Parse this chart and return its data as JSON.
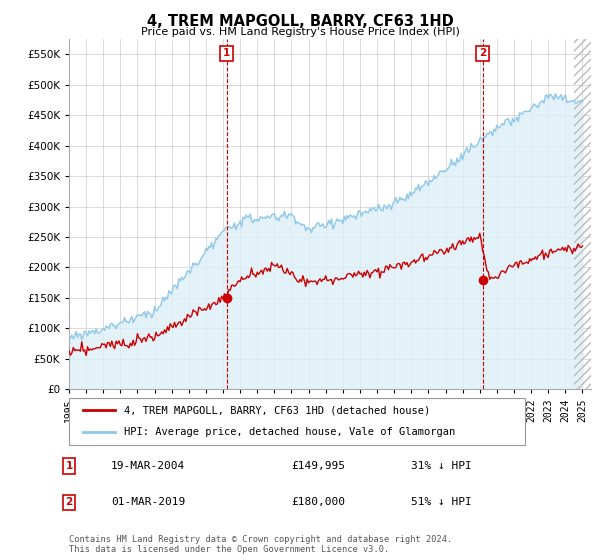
{
  "title": "4, TREM MAPGOLL, BARRY, CF63 1HD",
  "subtitle": "Price paid vs. HM Land Registry's House Price Index (HPI)",
  "ylim": [
    0,
    575000
  ],
  "yticks": [
    0,
    50000,
    100000,
    150000,
    200000,
    250000,
    300000,
    350000,
    400000,
    450000,
    500000,
    550000
  ],
  "x_start_year": 1995,
  "x_end_year": 2025,
  "hpi_color": "#8fc8e8",
  "hpi_fill_color": "#ddeef8",
  "price_color": "#cc0000",
  "marker1_year": 2004.21,
  "marker1_price": 149995,
  "marker2_year": 2019.17,
  "marker2_price": 180000,
  "legend_line1": "4, TREM MAPGOLL, BARRY, CF63 1HD (detached house)",
  "legend_line2": "HPI: Average price, detached house, Vale of Glamorgan",
  "annotation1_num": "1",
  "annotation1_date": "19-MAR-2004",
  "annotation1_price": "£149,995",
  "annotation1_pct": "31% ↓ HPI",
  "annotation2_num": "2",
  "annotation2_date": "01-MAR-2019",
  "annotation2_price": "£180,000",
  "annotation2_pct": "51% ↓ HPI",
  "footer": "Contains HM Land Registry data © Crown copyright and database right 2024.\nThis data is licensed under the Open Government Licence v3.0.",
  "background_color": "#ffffff",
  "plot_bg_color": "#ffffff",
  "grid_color": "#cccccc",
  "hatch_color": "#cccccc"
}
